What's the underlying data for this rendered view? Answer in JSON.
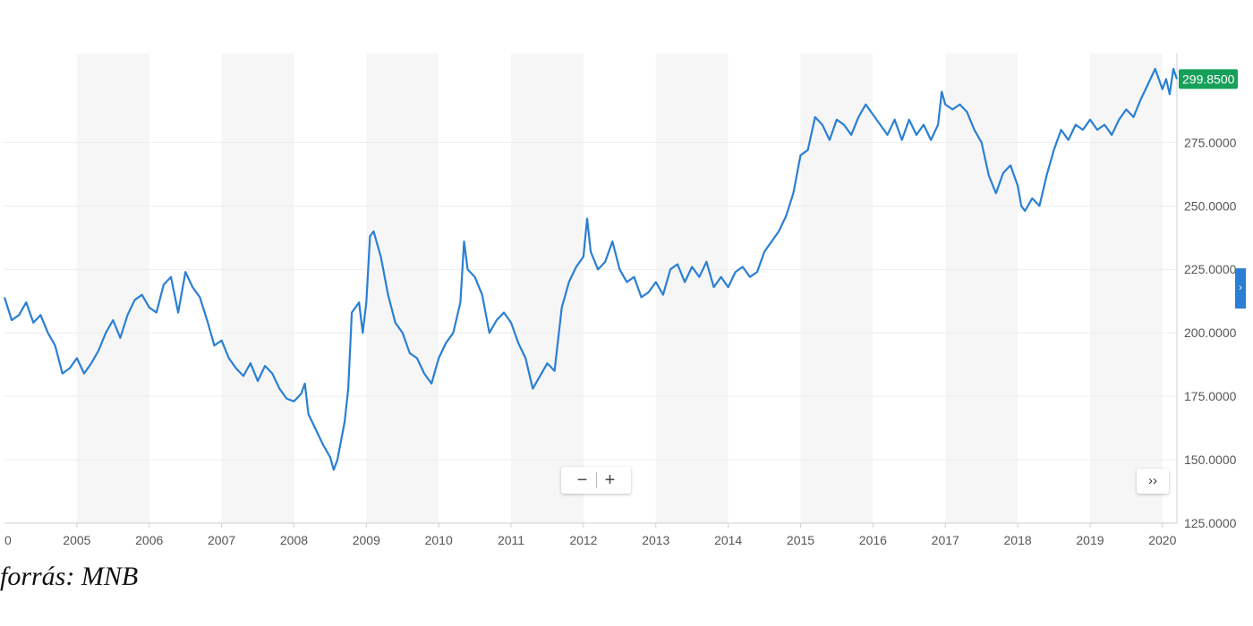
{
  "chart_data": {
    "type": "line",
    "title": "",
    "xlabel": "",
    "ylabel": "",
    "x_ticks": [
      "0",
      "2005",
      "2006",
      "2007",
      "2008",
      "2009",
      "2010",
      "2011",
      "2012",
      "2013",
      "2014",
      "2015",
      "2016",
      "2017",
      "2018",
      "2019",
      "2020"
    ],
    "y_ticks": [
      "125.0000",
      "150.0000",
      "175.0000",
      "200.0000",
      "225.0000",
      "250.0000",
      "275.0000"
    ],
    "ylim": [
      125,
      310
    ],
    "xlim": [
      2004.0,
      2020.2
    ],
    "current_value_label": "299.8500",
    "series": [
      {
        "color": "#2a7fd4",
        "points": [
          [
            2004.0,
            214
          ],
          [
            2004.1,
            205
          ],
          [
            2004.2,
            207
          ],
          [
            2004.3,
            212
          ],
          [
            2004.4,
            204
          ],
          [
            2004.5,
            207
          ],
          [
            2004.6,
            200
          ],
          [
            2004.7,
            195
          ],
          [
            2004.8,
            184
          ],
          [
            2004.9,
            186
          ],
          [
            2005.0,
            190
          ],
          [
            2005.1,
            184
          ],
          [
            2005.2,
            188
          ],
          [
            2005.3,
            193
          ],
          [
            2005.4,
            200
          ],
          [
            2005.5,
            205
          ],
          [
            2005.6,
            198
          ],
          [
            2005.7,
            207
          ],
          [
            2005.8,
            213
          ],
          [
            2005.9,
            215
          ],
          [
            2006.0,
            210
          ],
          [
            2006.1,
            208
          ],
          [
            2006.2,
            219
          ],
          [
            2006.3,
            222
          ],
          [
            2006.4,
            208
          ],
          [
            2006.5,
            224
          ],
          [
            2006.6,
            218
          ],
          [
            2006.7,
            214
          ],
          [
            2006.8,
            205
          ],
          [
            2006.9,
            195
          ],
          [
            2007.0,
            197
          ],
          [
            2007.1,
            190
          ],
          [
            2007.2,
            186
          ],
          [
            2007.3,
            183
          ],
          [
            2007.4,
            188
          ],
          [
            2007.5,
            181
          ],
          [
            2007.6,
            187
          ],
          [
            2007.7,
            184
          ],
          [
            2007.8,
            178
          ],
          [
            2007.9,
            174
          ],
          [
            2008.0,
            173
          ],
          [
            2008.1,
            176
          ],
          [
            2008.15,
            180
          ],
          [
            2008.2,
            168
          ],
          [
            2008.3,
            162
          ],
          [
            2008.4,
            156
          ],
          [
            2008.5,
            151
          ],
          [
            2008.55,
            146
          ],
          [
            2008.6,
            150
          ],
          [
            2008.7,
            165
          ],
          [
            2008.75,
            178
          ],
          [
            2008.8,
            208
          ],
          [
            2008.9,
            212
          ],
          [
            2008.95,
            200
          ],
          [
            2009.0,
            212
          ],
          [
            2009.05,
            238
          ],
          [
            2009.1,
            240
          ],
          [
            2009.2,
            230
          ],
          [
            2009.3,
            215
          ],
          [
            2009.4,
            204
          ],
          [
            2009.5,
            200
          ],
          [
            2009.6,
            192
          ],
          [
            2009.7,
            190
          ],
          [
            2009.8,
            184
          ],
          [
            2009.9,
            180
          ],
          [
            2010.0,
            190
          ],
          [
            2010.1,
            196
          ],
          [
            2010.2,
            200
          ],
          [
            2010.3,
            212
          ],
          [
            2010.35,
            236
          ],
          [
            2010.4,
            225
          ],
          [
            2010.5,
            222
          ],
          [
            2010.6,
            215
          ],
          [
            2010.7,
            200
          ],
          [
            2010.8,
            205
          ],
          [
            2010.9,
            208
          ],
          [
            2011.0,
            204
          ],
          [
            2011.1,
            196
          ],
          [
            2011.2,
            190
          ],
          [
            2011.3,
            178
          ],
          [
            2011.4,
            183
          ],
          [
            2011.5,
            188
          ],
          [
            2011.6,
            185
          ],
          [
            2011.7,
            210
          ],
          [
            2011.8,
            220
          ],
          [
            2011.9,
            226
          ],
          [
            2012.0,
            230
          ],
          [
            2012.05,
            245
          ],
          [
            2012.1,
            232
          ],
          [
            2012.2,
            225
          ],
          [
            2012.3,
            228
          ],
          [
            2012.4,
            236
          ],
          [
            2012.5,
            225
          ],
          [
            2012.6,
            220
          ],
          [
            2012.7,
            222
          ],
          [
            2012.8,
            214
          ],
          [
            2012.9,
            216
          ],
          [
            2013.0,
            220
          ],
          [
            2013.1,
            215
          ],
          [
            2013.2,
            225
          ],
          [
            2013.3,
            227
          ],
          [
            2013.4,
            220
          ],
          [
            2013.5,
            226
          ],
          [
            2013.6,
            222
          ],
          [
            2013.7,
            228
          ],
          [
            2013.8,
            218
          ],
          [
            2013.9,
            222
          ],
          [
            2014.0,
            218
          ],
          [
            2014.1,
            224
          ],
          [
            2014.2,
            226
          ],
          [
            2014.3,
            222
          ],
          [
            2014.4,
            224
          ],
          [
            2014.5,
            232
          ],
          [
            2014.6,
            236
          ],
          [
            2014.7,
            240
          ],
          [
            2014.8,
            246
          ],
          [
            2014.9,
            255
          ],
          [
            2015.0,
            270
          ],
          [
            2015.1,
            272
          ],
          [
            2015.2,
            285
          ],
          [
            2015.3,
            282
          ],
          [
            2015.4,
            276
          ],
          [
            2015.5,
            284
          ],
          [
            2015.6,
            282
          ],
          [
            2015.7,
            278
          ],
          [
            2015.8,
            285
          ],
          [
            2015.9,
            290
          ],
          [
            2016.0,
            286
          ],
          [
            2016.1,
            282
          ],
          [
            2016.2,
            278
          ],
          [
            2016.3,
            284
          ],
          [
            2016.4,
            276
          ],
          [
            2016.5,
            284
          ],
          [
            2016.6,
            278
          ],
          [
            2016.7,
            282
          ],
          [
            2016.8,
            276
          ],
          [
            2016.9,
            282
          ],
          [
            2016.95,
            295
          ],
          [
            2017.0,
            290
          ],
          [
            2017.1,
            288
          ],
          [
            2017.2,
            290
          ],
          [
            2017.3,
            287
          ],
          [
            2017.4,
            280
          ],
          [
            2017.5,
            275
          ],
          [
            2017.6,
            262
          ],
          [
            2017.7,
            255
          ],
          [
            2017.8,
            263
          ],
          [
            2017.9,
            266
          ],
          [
            2018.0,
            258
          ],
          [
            2018.05,
            250
          ],
          [
            2018.1,
            248
          ],
          [
            2018.2,
            253
          ],
          [
            2018.3,
            250
          ],
          [
            2018.4,
            262
          ],
          [
            2018.5,
            272
          ],
          [
            2018.6,
            280
          ],
          [
            2018.7,
            276
          ],
          [
            2018.8,
            282
          ],
          [
            2018.9,
            280
          ],
          [
            2019.0,
            284
          ],
          [
            2019.1,
            280
          ],
          [
            2019.2,
            282
          ],
          [
            2019.3,
            278
          ],
          [
            2019.4,
            284
          ],
          [
            2019.5,
            288
          ],
          [
            2019.6,
            285
          ],
          [
            2019.7,
            292
          ],
          [
            2019.8,
            298
          ],
          [
            2019.9,
            304
          ],
          [
            2020.0,
            296
          ],
          [
            2020.05,
            300
          ],
          [
            2020.1,
            294
          ],
          [
            2020.15,
            304
          ],
          [
            2020.2,
            300
          ]
        ]
      }
    ]
  },
  "source_caption": "forrás: MNB",
  "controls": {
    "zoom_out": "−",
    "zoom_in": "+",
    "scroll_right": "››",
    "side_tab": "›"
  },
  "colors": {
    "line": "#2a7fd4",
    "price_label_bg": "#17a05a",
    "band": "#f6f6f6",
    "grid": "#ececec"
  }
}
